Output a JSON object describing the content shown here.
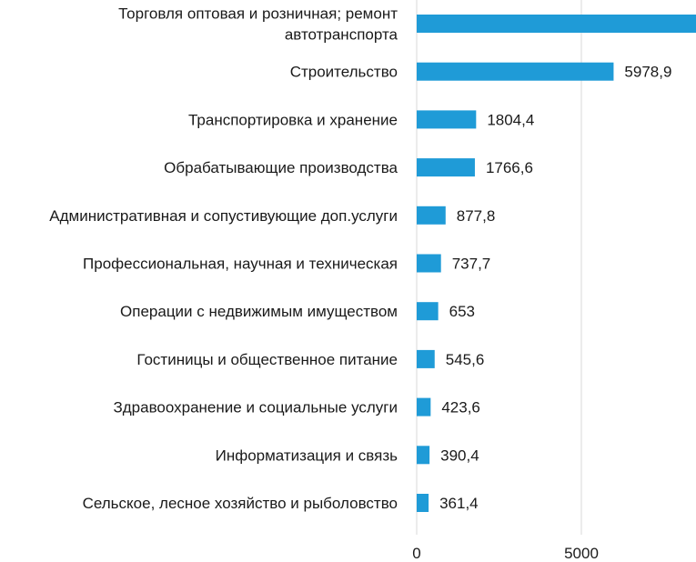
{
  "chart_data": {
    "type": "bar",
    "orientation": "horizontal",
    "categories": [
      [
        "Торговля оптовая и розничная; ремонт",
        "автотранспорта"
      ],
      [
        "Строительство"
      ],
      [
        "Транспортировка и хранение"
      ],
      [
        "Обрабатывающие производства"
      ],
      [
        "Административная и сопустивующие доп.услуги"
      ],
      [
        "Профессиональная, научная и техническая"
      ],
      [
        "Операции с недвижимым имуществом"
      ],
      [
        "Гостиницы и общественное питание"
      ],
      [
        "Здравоохранение и социальные услуги"
      ],
      [
        "Информатизация и связь"
      ],
      [
        "Сельское, лесное хозяйство и рыболовство"
      ]
    ],
    "values": [
      8500,
      5978.9,
      1804.4,
      1766.6,
      877.8,
      737.7,
      653,
      545.6,
      423.6,
      390.4,
      361.4
    ],
    "value_labels": [
      "",
      "5978,9",
      "1804,4",
      "1766,6",
      "877,8",
      "737,7",
      "653",
      "545,6",
      "423,6",
      "390,4",
      "361,4"
    ],
    "x_ticks": [
      0,
      5000
    ],
    "x_tick_labels": [
      "0",
      "5000"
    ],
    "xlim": [
      0,
      8500
    ],
    "grid": true,
    "bar_color": "#1f9bd7",
    "grid_color": "#d9d9d9"
  }
}
